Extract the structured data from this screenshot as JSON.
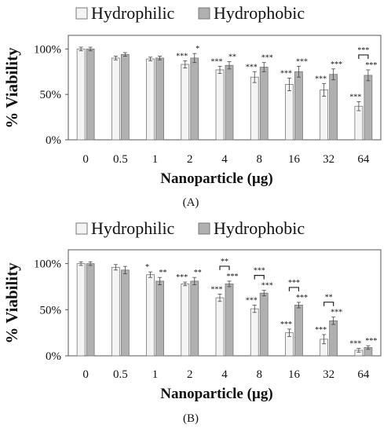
{
  "colors": {
    "hydrophilic": "#f4f4f4",
    "hydrophobic": "#b0b0b0",
    "stroke": "#777777",
    "error": "#444444"
  },
  "chart_data": [
    {
      "type": "bar",
      "panel_label": "(A)",
      "categories": [
        "0",
        "0.5",
        "1",
        "2",
        "4",
        "8",
        "16",
        "32",
        "64"
      ],
      "xlabel": "Nanoparticle (µg)",
      "ylabel": "% Viability",
      "ylim": [
        0,
        115
      ],
      "yticks": [
        "0%",
        "50%",
        "100%"
      ],
      "legend": "top",
      "series": [
        {
          "name": "Hydrophilic",
          "values": [
            100,
            90,
            89,
            83,
            77,
            69,
            61,
            55,
            37
          ],
          "errors": [
            2,
            2,
            2,
            4,
            4,
            6,
            7,
            7,
            5
          ],
          "stars": [
            "",
            "",
            "",
            "***",
            "***",
            "***",
            "***",
            "***",
            "***"
          ]
        },
        {
          "name": "Hydrophobic",
          "values": [
            100,
            94,
            90,
            90,
            82,
            80,
            75,
            72,
            71
          ],
          "errors": [
            2,
            2,
            2,
            5,
            4,
            5,
            6,
            6,
            6
          ],
          "stars": [
            "",
            "",
            "",
            "*",
            "**",
            "***",
            "***",
            "***",
            "***"
          ]
        }
      ],
      "brackets": [
        {
          "index": 8,
          "label": "***"
        }
      ]
    },
    {
      "type": "bar",
      "panel_label": "(B)",
      "categories": [
        "0",
        "0.5",
        "1",
        "2",
        "4",
        "8",
        "16",
        "32",
        "64"
      ],
      "xlabel": "Nanoparticle (µg)",
      "ylabel": "% Viability",
      "ylim": [
        0,
        115
      ],
      "yticks": [
        "0%",
        "50%",
        "100%"
      ],
      "legend": "top",
      "series": [
        {
          "name": "Hydrophilic",
          "values": [
            100,
            96,
            88,
            78,
            63,
            51,
            25,
            18,
            6
          ],
          "errors": [
            2,
            3,
            3,
            2,
            4,
            4,
            4,
            5,
            2
          ],
          "stars": [
            "",
            "",
            "*",
            "***",
            "***",
            "***",
            "***",
            "***",
            "***"
          ]
        },
        {
          "name": "Hydrophobic",
          "values": [
            100,
            93,
            81,
            81,
            78,
            68,
            55,
            38,
            9
          ],
          "errors": [
            2,
            4,
            4,
            4,
            3,
            3,
            3,
            4,
            2
          ],
          "stars": [
            "",
            "",
            "**",
            "**",
            "***",
            "***",
            "***",
            "***",
            "***"
          ]
        }
      ],
      "brackets": [
        {
          "index": 4,
          "label": "**"
        },
        {
          "index": 5,
          "label": "***"
        },
        {
          "index": 6,
          "label": "***"
        },
        {
          "index": 7,
          "label": "**"
        }
      ]
    }
  ]
}
